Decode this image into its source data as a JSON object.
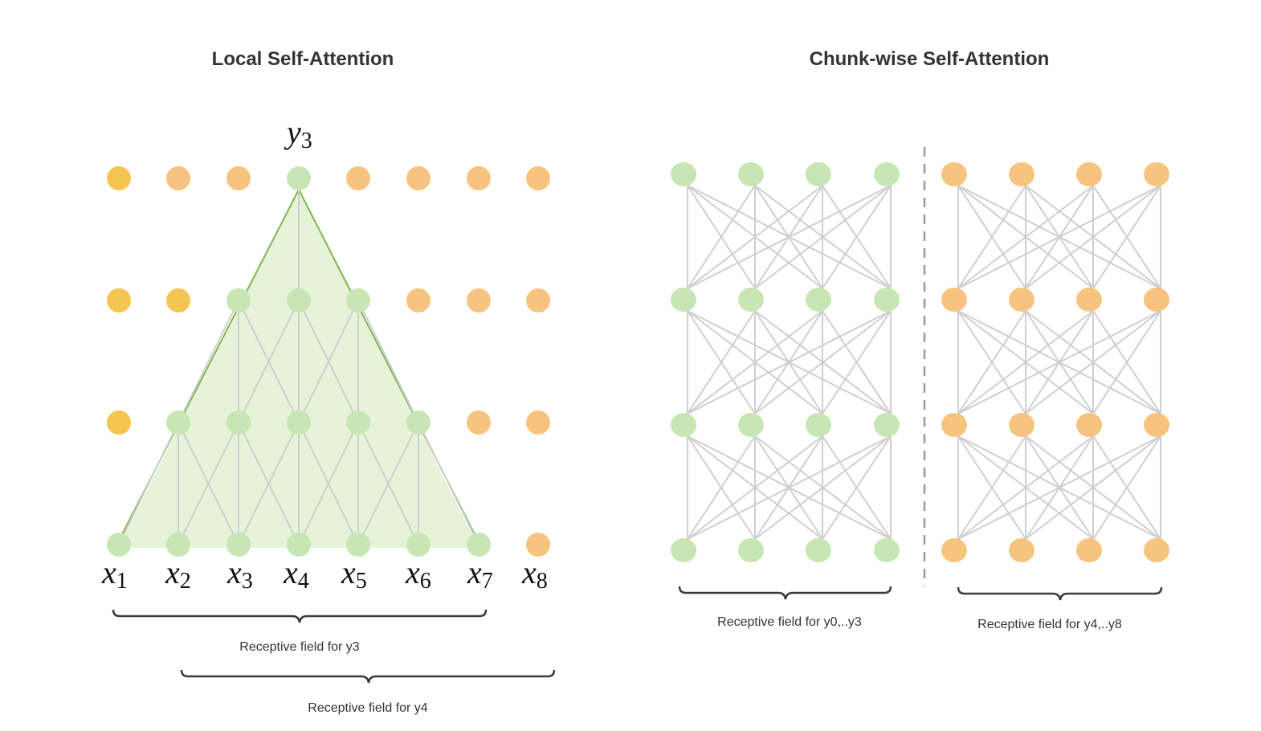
{
  "left_panel": {
    "title": "Local Self-Attention",
    "output_label": {
      "base": "y",
      "sub": "3"
    },
    "input_labels": [
      {
        "base": "x",
        "sub": "1"
      },
      {
        "base": "x",
        "sub": "2"
      },
      {
        "base": "x",
        "sub": "3"
      },
      {
        "base": "x",
        "sub": "4"
      },
      {
        "base": "x",
        "sub": "5"
      },
      {
        "base": "x",
        "sub": "6"
      },
      {
        "base": "x",
        "sub": "7"
      },
      {
        "base": "x",
        "sub": "8"
      }
    ],
    "caption_y3": "Receptive field for y3",
    "caption_y4": "Receptive field for y4"
  },
  "right_panel": {
    "title": "Chunk-wise Self-Attention",
    "caption_chunk1": "Receptive field for y0,..y3",
    "caption_chunk2": "Receptive field for y4,..y8"
  },
  "colors": {
    "green_node": "#c8e6b4",
    "orange_node": "#f6c47f",
    "yellow_node": "#f5c551",
    "triangle_fill": "#e6f3d9",
    "triangle_stroke": "#7fb64e",
    "edge": "#cfcfcf",
    "separator": "#999999"
  }
}
